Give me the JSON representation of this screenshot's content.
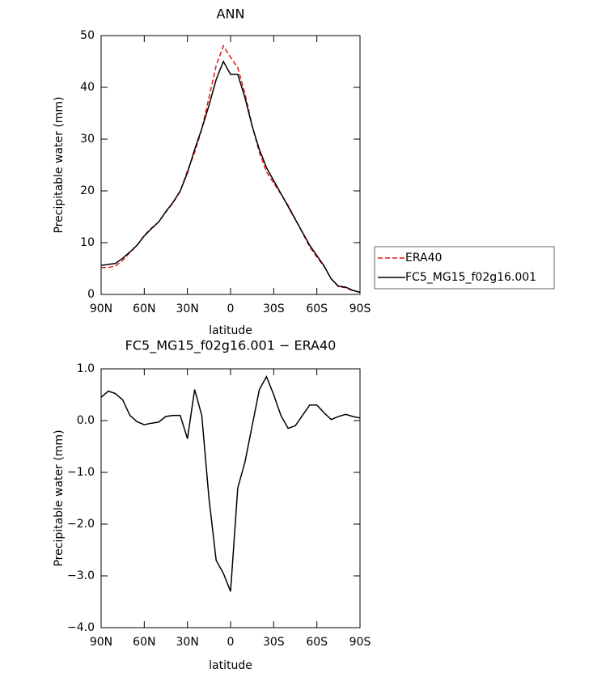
{
  "chart_data": [
    {
      "type": "line",
      "title": "ANN",
      "xlabel": "latitude",
      "ylabel": "Precipitable water (mm)",
      "x": [
        90,
        85,
        80,
        75,
        70,
        65,
        60,
        55,
        50,
        45,
        40,
        35,
        30,
        25,
        20,
        15,
        10,
        5,
        0,
        -5,
        -10,
        -15,
        -20,
        -25,
        -30,
        -35,
        -40,
        -45,
        -50,
        -55,
        -60,
        -65,
        -70,
        -75,
        -80,
        -85,
        -90
      ],
      "series": [
        {
          "name": "ERA40",
          "color": "#e41a1c",
          "dash": true,
          "values": [
            5.2,
            5.2,
            5.5,
            6.6,
            8.1,
            9.5,
            11.4,
            12.8,
            14.0,
            15.9,
            17.7,
            19.9,
            23.9,
            27.4,
            31.9,
            38.0,
            44.2,
            48.0,
            45.8,
            43.8,
            38.8,
            32.6,
            27.4,
            23.7,
            21.5,
            19.4,
            17.2,
            14.6,
            11.9,
            9.2,
            7.2,
            5.4,
            3.0,
            1.5,
            1.3,
            0.7,
            0.4
          ]
        },
        {
          "name": "FC5_MG15_f02g16.001",
          "color": "#000000",
          "dash": false,
          "values": [
            5.6,
            5.8,
            6.0,
            7.0,
            8.2,
            9.5,
            11.3,
            12.7,
            14.0,
            16.0,
            17.8,
            20.0,
            23.5,
            28.0,
            32.0,
            36.5,
            41.5,
            45.0,
            42.5,
            42.5,
            38.0,
            32.5,
            28.0,
            24.5,
            22.0,
            19.5,
            17.0,
            14.5,
            12.0,
            9.5,
            7.5,
            5.5,
            3.0,
            1.6,
            1.4,
            0.8,
            0.4
          ]
        }
      ],
      "xlim": [
        90,
        -90
      ],
      "xticks": [
        {
          "value": 90,
          "label": "90N"
        },
        {
          "value": 60,
          "label": "60N"
        },
        {
          "value": 30,
          "label": "30N"
        },
        0,
        {
          "value": -30,
          "label": "30S"
        },
        {
          "value": -60,
          "label": "60S"
        },
        {
          "value": -90,
          "label": "90S"
        }
      ],
      "ylim": [
        0,
        50
      ],
      "yticks": [
        0,
        10,
        20,
        30,
        40,
        50
      ],
      "legend": "right"
    },
    {
      "type": "line",
      "title": "FC5_MG15_f02g16.001 − ERA40",
      "xlabel": "latitude",
      "ylabel": "Precipitable water (mm)",
      "x": [
        90,
        85,
        80,
        75,
        70,
        65,
        60,
        55,
        50,
        45,
        40,
        35,
        30,
        25,
        20,
        15,
        10,
        5,
        0,
        -5,
        -10,
        -15,
        -20,
        -25,
        -30,
        -35,
        -40,
        -45,
        -50,
        -55,
        -60,
        -65,
        -70,
        -75,
        -80,
        -85,
        -90
      ],
      "series": [
        {
          "name": "FC5_MG15_f02g16.001 − ERA40",
          "color": "#000000",
          "dash": false,
          "values": [
            0.45,
            0.57,
            0.52,
            0.4,
            0.1,
            -0.02,
            -0.08,
            -0.05,
            -0.03,
            0.08,
            0.1,
            0.1,
            -0.35,
            0.6,
            0.1,
            -1.5,
            -2.7,
            -2.95,
            -3.3,
            -1.3,
            -0.8,
            -0.1,
            0.6,
            0.85,
            0.5,
            0.1,
            -0.15,
            -0.1,
            0.1,
            0.3,
            0.3,
            0.15,
            0.02,
            0.08,
            0.12,
            0.08,
            0.05
          ]
        }
      ],
      "xlim": [
        90,
        -90
      ],
      "xticks": [
        {
          "value": 90,
          "label": "90N"
        },
        {
          "value": 60,
          "label": "60N"
        },
        {
          "value": 30,
          "label": "30N"
        },
        0,
        {
          "value": -30,
          "label": "30S"
        },
        {
          "value": -60,
          "label": "60S"
        },
        {
          "value": -90,
          "label": "90S"
        }
      ],
      "ylim": [
        -4,
        1
      ],
      "yticks": [
        {
          "value": -4,
          "label": "−4.0"
        },
        {
          "value": -3,
          "label": "−3.0"
        },
        {
          "value": -2,
          "label": "−2.0"
        },
        {
          "value": -1,
          "label": "−1.0"
        },
        {
          "value": 0,
          "label": "0.0"
        },
        {
          "value": 1,
          "label": "1.0"
        }
      ]
    }
  ]
}
